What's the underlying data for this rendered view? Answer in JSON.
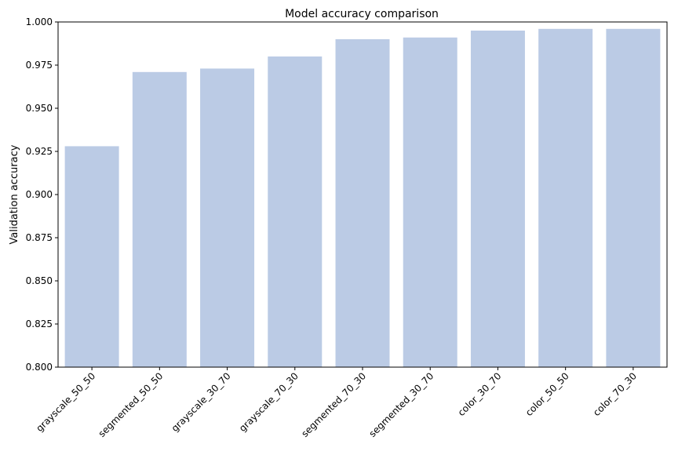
{
  "chart_data": {
    "type": "bar",
    "title": "Model accuracy comparison",
    "xlabel": "",
    "ylabel": "Validation accuracy",
    "categories": [
      "grayscale_50_50",
      "segmented_50_50",
      "grayscale_30_70",
      "grayscale_70_30",
      "segmented_70_30",
      "segmented_30_70",
      "color_30_70",
      "color_50_50",
      "color_70_30"
    ],
    "values": [
      0.928,
      0.971,
      0.973,
      0.98,
      0.99,
      0.991,
      0.995,
      0.996,
      0.996
    ],
    "ylim": [
      0.8,
      1.0
    ],
    "yticks": [
      "0.800",
      "0.825",
      "0.850",
      "0.875",
      "0.900",
      "0.925",
      "0.950",
      "0.975",
      "1.000"
    ],
    "bar_color": "#bbcbe5",
    "grid": false,
    "legend": "none"
  }
}
